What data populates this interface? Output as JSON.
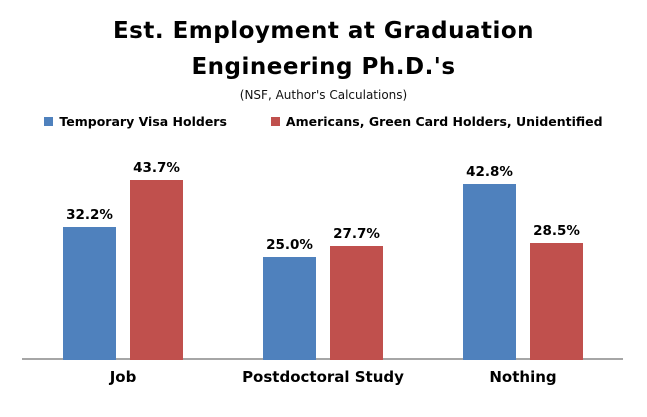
{
  "title": {
    "line1": "Est. Employment at Graduation",
    "line2": "Engineering Ph.D.'s",
    "subtitle": "(NSF, Author's Calculations)"
  },
  "legend": {
    "items": [
      {
        "label": "Temporary Visa Holders",
        "color": "#4F81BD"
      },
      {
        "label": "Americans, Green Card Holders, Unidentified",
        "color": "#C0504D"
      }
    ]
  },
  "chart_data": {
    "type": "bar",
    "title": "Est. Employment at Graduation Engineering Ph.D.'s",
    "subtitle": "(NSF, Author's Calculations)",
    "categories": [
      "Job",
      "Postdoctoral Study",
      "Nothing"
    ],
    "series": [
      {
        "name": "Temporary Visa Holders",
        "color": "#4F81BD",
        "values": [
          32.2,
          25.0,
          42.8
        ],
        "labels": [
          "32.2%",
          "25.0%",
          "42.8%"
        ]
      },
      {
        "name": "Americans, Green Card Holders, Unidentified",
        "color": "#C0504D",
        "values": [
          43.7,
          27.7,
          28.5
        ],
        "labels": [
          "43.7%",
          "27.7%",
          "28.5%"
        ]
      }
    ],
    "xlabel": "",
    "ylabel": "",
    "ylim": [
      0,
      50
    ],
    "grid": false,
    "y_axis_visible": false,
    "legend_position": "top",
    "axis_line_color": "#A6A6A6",
    "background": "#FFFFFF"
  }
}
